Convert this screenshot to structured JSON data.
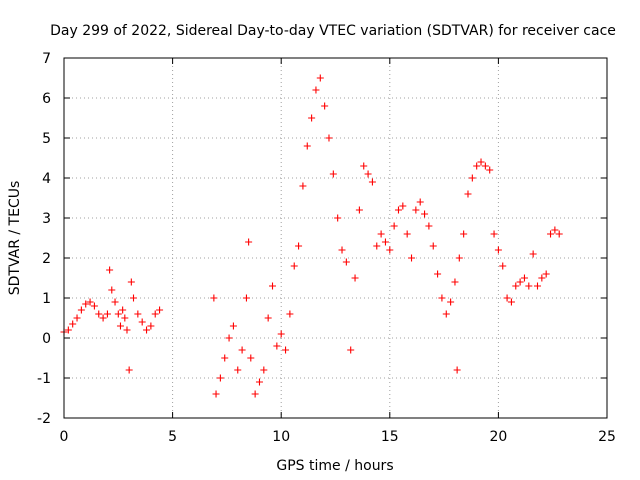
{
  "chart_data": {
    "type": "scatter",
    "title": "Day 299 of 2022, Sidereal Day-to-day VTEC variation (SDTVAR) for receiver cace",
    "xlabel": "GPS time / hours",
    "ylabel": "SDTVAR / TECUs",
    "xlim": [
      0,
      25
    ],
    "ylim": [
      -2,
      7
    ],
    "xticks": [
      0,
      5,
      10,
      15,
      20,
      25
    ],
    "yticks": [
      -2,
      -1,
      0,
      1,
      2,
      3,
      4,
      5,
      6,
      7
    ],
    "grid": true,
    "legend": "none",
    "marker": "plus",
    "color": "#ff0000",
    "series": [
      {
        "name": "SDTVAR",
        "points": [
          [
            0.0,
            0.15
          ],
          [
            0.2,
            0.2
          ],
          [
            0.4,
            0.35
          ],
          [
            0.6,
            0.5
          ],
          [
            0.8,
            0.7
          ],
          [
            1.0,
            0.85
          ],
          [
            1.2,
            0.9
          ],
          [
            1.4,
            0.8
          ],
          [
            1.6,
            0.6
          ],
          [
            1.8,
            0.5
          ],
          [
            2.0,
            0.6
          ],
          [
            2.1,
            1.7
          ],
          [
            2.2,
            1.2
          ],
          [
            2.35,
            0.9
          ],
          [
            2.5,
            0.6
          ],
          [
            2.6,
            0.3
          ],
          [
            2.7,
            0.7
          ],
          [
            2.8,
            0.5
          ],
          [
            2.9,
            0.2
          ],
          [
            3.0,
            -0.8
          ],
          [
            3.1,
            1.4
          ],
          [
            3.2,
            1.0
          ],
          [
            3.4,
            0.6
          ],
          [
            3.6,
            0.4
          ],
          [
            3.8,
            0.2
          ],
          [
            4.0,
            0.3
          ],
          [
            4.2,
            0.6
          ],
          [
            4.4,
            0.7
          ],
          [
            6.9,
            1.0
          ],
          [
            7.0,
            -1.4
          ],
          [
            7.2,
            -1.0
          ],
          [
            7.4,
            -0.5
          ],
          [
            7.6,
            0.0
          ],
          [
            7.8,
            0.3
          ],
          [
            8.0,
            -0.8
          ],
          [
            8.2,
            -0.3
          ],
          [
            8.4,
            1.0
          ],
          [
            8.5,
            2.4
          ],
          [
            8.6,
            -0.5
          ],
          [
            8.8,
            -1.4
          ],
          [
            9.0,
            -1.1
          ],
          [
            9.2,
            -0.8
          ],
          [
            9.4,
            0.5
          ],
          [
            9.6,
            1.3
          ],
          [
            9.8,
            -0.2
          ],
          [
            10.0,
            0.1
          ],
          [
            10.2,
            -0.3
          ],
          [
            10.4,
            0.6
          ],
          [
            10.6,
            1.8
          ],
          [
            10.8,
            2.3
          ],
          [
            11.0,
            3.8
          ],
          [
            11.2,
            4.8
          ],
          [
            11.4,
            5.5
          ],
          [
            11.6,
            6.2
          ],
          [
            11.8,
            6.5
          ],
          [
            12.0,
            5.8
          ],
          [
            12.2,
            5.0
          ],
          [
            12.4,
            4.1
          ],
          [
            12.6,
            3.0
          ],
          [
            12.8,
            2.2
          ],
          [
            13.0,
            1.9
          ],
          [
            13.2,
            -0.3
          ],
          [
            13.4,
            1.5
          ],
          [
            13.6,
            3.2
          ],
          [
            13.8,
            4.3
          ],
          [
            14.0,
            4.1
          ],
          [
            14.2,
            3.9
          ],
          [
            14.4,
            2.3
          ],
          [
            14.6,
            2.6
          ],
          [
            14.8,
            2.4
          ],
          [
            15.0,
            2.2
          ],
          [
            15.2,
            2.8
          ],
          [
            15.4,
            3.2
          ],
          [
            15.6,
            3.3
          ],
          [
            15.8,
            2.6
          ],
          [
            16.0,
            2.0
          ],
          [
            16.2,
            3.2
          ],
          [
            16.4,
            3.4
          ],
          [
            16.6,
            3.1
          ],
          [
            16.8,
            2.8
          ],
          [
            17.0,
            2.3
          ],
          [
            17.2,
            1.6
          ],
          [
            17.4,
            1.0
          ],
          [
            17.6,
            0.6
          ],
          [
            17.8,
            0.9
          ],
          [
            18.0,
            1.4
          ],
          [
            18.1,
            -0.8
          ],
          [
            18.2,
            2.0
          ],
          [
            18.4,
            2.6
          ],
          [
            18.6,
            3.6
          ],
          [
            18.8,
            4.0
          ],
          [
            19.0,
            4.3
          ],
          [
            19.2,
            4.4
          ],
          [
            19.4,
            4.3
          ],
          [
            19.6,
            4.2
          ],
          [
            19.8,
            2.6
          ],
          [
            20.0,
            2.2
          ],
          [
            20.2,
            1.8
          ],
          [
            20.4,
            1.0
          ],
          [
            20.6,
            0.9
          ],
          [
            20.8,
            1.3
          ],
          [
            21.0,
            1.4
          ],
          [
            21.2,
            1.5
          ],
          [
            21.4,
            1.3
          ],
          [
            21.6,
            2.1
          ],
          [
            21.8,
            1.3
          ],
          [
            22.0,
            1.5
          ],
          [
            22.2,
            1.6
          ],
          [
            22.4,
            2.6
          ],
          [
            22.6,
            2.7
          ],
          [
            22.8,
            2.6
          ]
        ]
      }
    ]
  }
}
